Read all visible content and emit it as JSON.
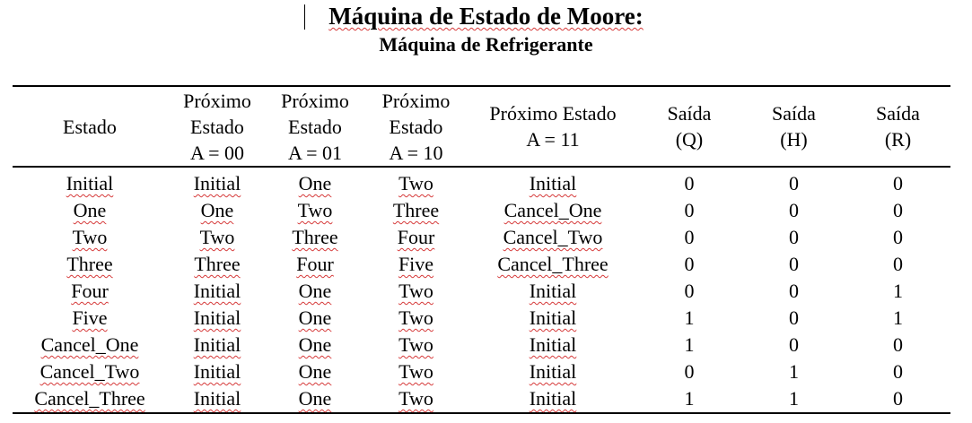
{
  "title": "Máquina de Estado de Moore:",
  "subtitle": "Máquina de Refrigerante",
  "colors": {
    "spellcheck_underline": "#d63a3a",
    "text": "#000000",
    "background": "#ffffff"
  },
  "table": {
    "headers": [
      [
        "Estado"
      ],
      [
        "Próximo",
        "Estado",
        "A = 00"
      ],
      [
        "Próximo",
        "Estado",
        "A = 01"
      ],
      [
        "Próximo",
        "Estado",
        "A = 10"
      ],
      [
        "Próximo Estado",
        "A = 11"
      ],
      [
        "Saída",
        "(Q)"
      ],
      [
        "Saída",
        "(H)"
      ],
      [
        "Saída",
        "(R)"
      ]
    ],
    "rows": [
      [
        "Initial",
        "Initial",
        "One",
        "Two",
        "Initial",
        "0",
        "0",
        "0"
      ],
      [
        "One",
        "One",
        "Two",
        "Three",
        "Cancel_One",
        "0",
        "0",
        "0"
      ],
      [
        "Two",
        "Two",
        "Three",
        "Four",
        "Cancel_Two",
        "0",
        "0",
        "0"
      ],
      [
        "Three",
        "Three",
        "Four",
        "Five",
        "Cancel_Three",
        "0",
        "0",
        "0"
      ],
      [
        "Four",
        "Initial",
        "One",
        "Two",
        "Initial",
        "0",
        "0",
        "1"
      ],
      [
        "Five",
        "Initial",
        "One",
        "Two",
        "Initial",
        "1",
        "0",
        "1"
      ],
      [
        "Cancel_One",
        "Initial",
        "One",
        "Two",
        "Initial",
        "1",
        "0",
        "0"
      ],
      [
        "Cancel_Two",
        "Initial",
        "One",
        "Two",
        "Initial",
        "0",
        "1",
        "0"
      ],
      [
        "Cancel_Three",
        "Initial",
        "One",
        "Two",
        "Initial",
        "1",
        "1",
        "0"
      ]
    ]
  }
}
